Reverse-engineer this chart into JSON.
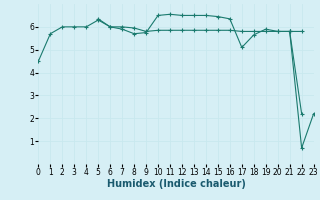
{
  "xlabel": "Humidex (Indice chaleur)",
  "background_color": "#d6eff5",
  "grid_color": "#c8e8ee",
  "line_color": "#1a7a6e",
  "series": [
    {
      "x": [
        0,
        1,
        2,
        3,
        4,
        5,
        6,
        7,
        8,
        9,
        10,
        11,
        12,
        13,
        14,
        15,
        16,
        17,
        18,
        19,
        20,
        21,
        22
      ],
      "y": [
        4.5,
        5.7,
        6.0,
        6.0,
        6.0,
        6.3,
        6.0,
        6.0,
        5.95,
        5.8,
        5.85,
        5.85,
        5.85,
        5.85,
        5.85,
        5.85,
        5.85,
        5.8,
        5.8,
        5.8,
        5.8,
        5.8,
        2.2
      ]
    },
    {
      "x": [
        5,
        6,
        7,
        8,
        9,
        10,
        11,
        12,
        13,
        14,
        15,
        16,
        17,
        18,
        19,
        20,
        21,
        22
      ],
      "y": [
        6.35,
        6.0,
        5.9,
        5.7,
        5.75,
        6.5,
        6.55,
        6.5,
        6.5,
        6.5,
        6.45,
        6.35,
        5.1,
        5.65,
        5.9,
        5.8,
        5.8,
        5.8
      ]
    },
    {
      "x": [
        21,
        22,
        23
      ],
      "y": [
        5.8,
        0.7,
        2.2
      ]
    }
  ],
  "ylim": [
    0,
    7
  ],
  "xlim": [
    0,
    23
  ],
  "yticks": [
    1,
    2,
    3,
    4,
    5,
    6
  ],
  "xticks": [
    0,
    1,
    2,
    3,
    4,
    5,
    6,
    7,
    8,
    9,
    10,
    11,
    12,
    13,
    14,
    15,
    16,
    17,
    18,
    19,
    20,
    21,
    22,
    23
  ],
  "tick_fontsize": 5.5,
  "xlabel_fontsize": 7
}
